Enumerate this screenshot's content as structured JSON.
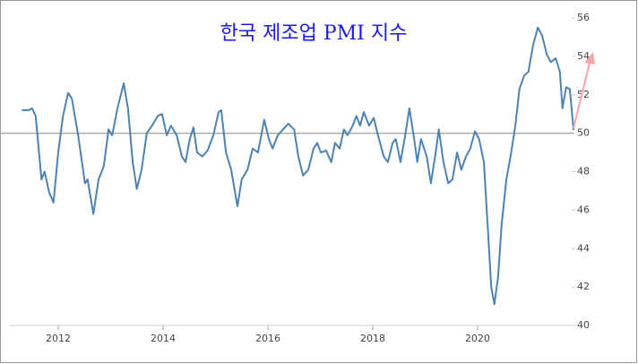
{
  "chart_data": {
    "type": "line",
    "title": "한국 제조업 PMI 지수",
    "xlim": [
      2011.06,
      2021.83
    ],
    "xticks": [
      2012,
      2014,
      2016,
      2018,
      2020
    ],
    "ylim": [
      40,
      56
    ],
    "yticks": [
      40,
      42,
      44,
      46,
      48,
      50,
      52,
      54,
      56
    ],
    "reference_line": 50,
    "reference_color": "#aaaaaa",
    "series": [
      {
        "name": "PMI",
        "color": "#4d82b3",
        "x": [
          2011.32,
          2011.44,
          2011.5,
          2011.57,
          2011.68,
          2011.74,
          2011.83,
          2011.91,
          2012.0,
          2012.09,
          2012.19,
          2012.26,
          2012.38,
          2012.51,
          2012.56,
          2012.67,
          2012.77,
          2012.87,
          2012.96,
          2013.03,
          2013.13,
          2013.25,
          2013.33,
          2013.42,
          2013.5,
          2013.59,
          2013.69,
          2013.79,
          2013.9,
          2013.98,
          2014.07,
          2014.15,
          2014.26,
          2014.36,
          2014.43,
          2014.51,
          2014.58,
          2014.65,
          2014.75,
          2014.85,
          2014.96,
          2015.06,
          2015.11,
          2015.2,
          2015.3,
          2015.42,
          2015.5,
          2015.61,
          2015.71,
          2015.81,
          2015.93,
          2016.02,
          2016.09,
          2016.19,
          2016.29,
          2016.39,
          2016.5,
          2016.58,
          2016.67,
          2016.77,
          2016.87,
          2016.94,
          2017.01,
          2017.11,
          2017.21,
          2017.28,
          2017.37,
          2017.45,
          2017.52,
          2017.62,
          2017.69,
          2017.76,
          2017.83,
          2017.93,
          2018.02,
          2018.1,
          2018.21,
          2018.29,
          2018.38,
          2018.44,
          2018.53,
          2018.62,
          2018.7,
          2018.79,
          2018.85,
          2018.92,
          2019.03,
          2019.11,
          2019.2,
          2019.26,
          2019.35,
          2019.44,
          2019.52,
          2019.61,
          2019.69,
          2019.78,
          2019.86,
          2019.95,
          2020.03,
          2020.12,
          2020.19,
          2020.26,
          2020.32,
          2020.39,
          2020.46,
          2020.55,
          2020.63,
          2020.72,
          2020.8,
          2020.89,
          2020.97,
          2021.06,
          2021.15,
          2021.23,
          2021.32,
          2021.4,
          2021.49,
          2021.57,
          2021.62,
          2021.69,
          2021.76,
          2021.83
        ],
        "values": [
          51.2,
          51.2,
          51.3,
          50.9,
          47.6,
          48.0,
          46.9,
          46.4,
          49.0,
          50.9,
          52.1,
          51.8,
          49.9,
          47.4,
          47.6,
          45.8,
          47.6,
          48.3,
          50.2,
          49.9,
          51.3,
          52.6,
          51.3,
          48.5,
          47.1,
          48.1,
          50.0,
          50.4,
          50.9,
          51.0,
          49.9,
          50.4,
          49.9,
          48.8,
          48.5,
          49.7,
          50.3,
          49.0,
          48.8,
          49.1,
          49.9,
          51.1,
          51.2,
          49.0,
          48.1,
          46.2,
          47.6,
          48.1,
          49.2,
          49.0,
          50.7,
          49.7,
          49.2,
          49.9,
          50.2,
          50.5,
          50.2,
          48.8,
          47.8,
          48.1,
          49.2,
          49.5,
          49.0,
          49.1,
          48.5,
          49.5,
          49.2,
          50.2,
          49.9,
          50.4,
          50.9,
          50.4,
          51.1,
          50.4,
          50.8,
          49.9,
          48.8,
          48.5,
          49.5,
          49.7,
          48.5,
          49.9,
          51.3,
          49.7,
          48.5,
          49.7,
          48.8,
          47.4,
          49.0,
          50.2,
          48.5,
          47.4,
          47.6,
          49.0,
          48.1,
          48.8,
          49.2,
          50.1,
          49.7,
          48.5,
          45.3,
          42.0,
          41.1,
          42.5,
          45.3,
          47.6,
          48.8,
          50.4,
          52.3,
          53.0,
          53.2,
          54.6,
          55.5,
          55.1,
          54.1,
          53.7,
          53.9,
          53.2,
          51.3,
          52.4,
          52.3,
          50.2
        ]
      }
    ]
  }
}
